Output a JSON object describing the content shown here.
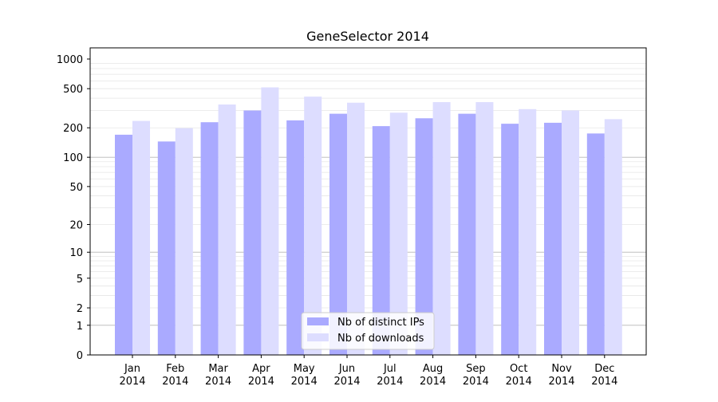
{
  "chart_data": {
    "type": "bar",
    "title": "GeneSelector 2014",
    "xlabel": "",
    "ylabel": "",
    "categories": [
      [
        "Jan",
        "2014"
      ],
      [
        "Feb",
        "2014"
      ],
      [
        "Mar",
        "2014"
      ],
      [
        "Apr",
        "2014"
      ],
      [
        "May",
        "2014"
      ],
      [
        "Jun",
        "2014"
      ],
      [
        "Jul",
        "2014"
      ],
      [
        "Aug",
        "2014"
      ],
      [
        "Sep",
        "2014"
      ],
      [
        "Oct",
        "2014"
      ],
      [
        "Nov",
        "2014"
      ],
      [
        "Dec",
        "2014"
      ]
    ],
    "y_scale": "log(1+x)",
    "ylim": [
      0,
      1000
    ],
    "y_ticks": [
      0,
      1,
      2,
      5,
      10,
      20,
      50,
      100,
      200,
      500,
      1000
    ],
    "grid": "horizontal",
    "legend_position": "lower center",
    "series": [
      {
        "name": "Nb of distinct IPs",
        "color": "#aaaaff",
        "values": [
          170,
          145,
          228,
          300,
          238,
          278,
          208,
          250,
          278,
          220,
          225,
          175
        ]
      },
      {
        "name": "Nb of downloads",
        "color": "#ddddff",
        "values": [
          235,
          198,
          345,
          515,
          415,
          360,
          285,
          365,
          365,
          310,
          300,
          245
        ]
      }
    ]
  }
}
